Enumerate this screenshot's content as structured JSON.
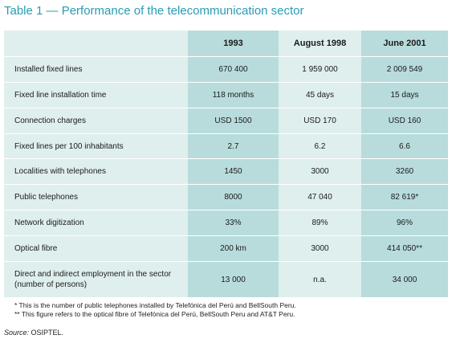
{
  "title": "Table 1 — Performance of the telecommunication sector",
  "columns": [
    "1993",
    "August 1998",
    "June 2001"
  ],
  "rows": [
    {
      "label": "Installed fixed lines",
      "values": [
        "670 400",
        "1 959 000",
        "2 009 549"
      ]
    },
    {
      "label": "Fixed line installation time",
      "values": [
        "118 months",
        "45 days",
        "15 days"
      ]
    },
    {
      "label": "Connection charges",
      "values": [
        "USD 1500",
        "USD 170",
        "USD 160"
      ]
    },
    {
      "label": "Fixed lines per 100 inhabitants",
      "values": [
        "2.7",
        "6.2",
        "6.6"
      ]
    },
    {
      "label": "Localities with telephones",
      "values": [
        "1450",
        "3000",
        "3260"
      ]
    },
    {
      "label": "Public telephones",
      "values": [
        "8000",
        "47 040",
        "82 619*"
      ]
    },
    {
      "label": "Network digitization",
      "values": [
        "33%",
        "89%",
        "96%"
      ]
    },
    {
      "label": "Optical fibre",
      "values": [
        "200 km",
        "3000",
        "414 050**"
      ]
    },
    {
      "label": "Direct and indirect employment in the sector (number of persons)",
      "values": [
        "13 000",
        "n.a.",
        "34 000"
      ]
    }
  ],
  "footnotes": [
    "*  This is the number of public telephones installed by Telefónica del Perú and BellSouth Peru.",
    "** This figure refers to the optical fibre of Telefónica del Perú, BellSouth Peru and AT&T Peru."
  ],
  "source": {
    "label": "Source:",
    "text": " OSIPTEL."
  },
  "colors": {
    "title": "#2a9bb3",
    "table_bg": "#dfefee",
    "column_shade": "#b8dcdb"
  }
}
